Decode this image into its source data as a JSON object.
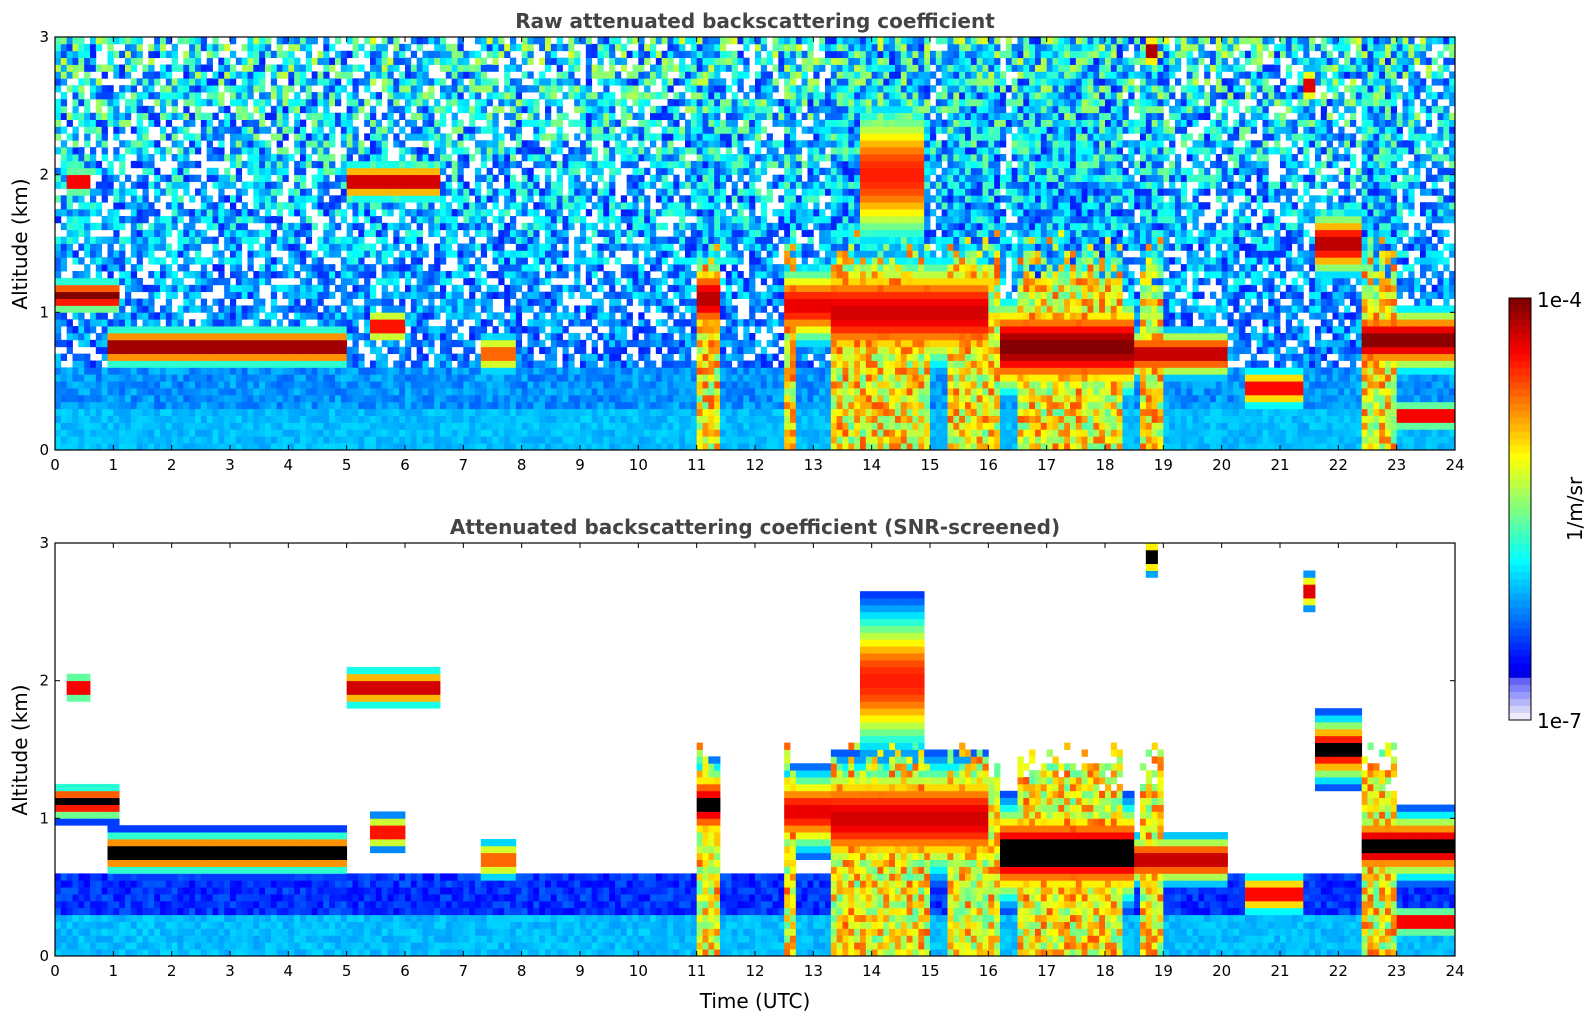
{
  "chart_data": [
    {
      "type": "heatmap",
      "title": "Raw attenuated backscattering coefficient",
      "xlabel": "",
      "ylabel": "Altitude (km)",
      "xlim": [
        0,
        24
      ],
      "ylim": [
        0,
        3
      ],
      "xticks": [
        "0",
        "1",
        "2",
        "3",
        "4",
        "5",
        "6",
        "7",
        "8",
        "9",
        "10",
        "11",
        "12",
        "13",
        "14",
        "15",
        "16",
        "17",
        "18",
        "19",
        "20",
        "21",
        "22",
        "23",
        "24"
      ],
      "yticks": [
        "0",
        "1",
        "2",
        "3"
      ],
      "screened": false,
      "features": [
        {
          "t0": 0.0,
          "t1": 1.1,
          "z": 1.12,
          "dz": 0.1,
          "v": 1.0
        },
        {
          "t0": 0.2,
          "t1": 0.6,
          "z": 1.95,
          "dz": 0.08,
          "v": 0.95
        },
        {
          "t0": 0.9,
          "t1": 5.0,
          "z": 0.75,
          "dz": 0.12,
          "v": 1.0
        },
        {
          "t0": 5.0,
          "t1": 6.6,
          "z": 1.95,
          "dz": 0.12,
          "v": 0.95
        },
        {
          "t0": 5.4,
          "t1": 6.0,
          "z": 0.9,
          "dz": 0.1,
          "v": 0.9
        },
        {
          "t0": 7.3,
          "t1": 7.9,
          "z": 0.7,
          "dz": 0.12,
          "v": 0.8
        },
        {
          "t0": 11.0,
          "t1": 11.4,
          "z": 1.1,
          "dz": 0.25,
          "v": 0.95
        },
        {
          "t0": 12.5,
          "t1": 13.3,
          "z": 1.05,
          "dz": 0.25,
          "v": 0.9
        },
        {
          "t0": 13.3,
          "t1": 16.0,
          "z": 1.0,
          "dz": 0.35,
          "v": 0.92
        },
        {
          "t0": 13.8,
          "t1": 14.9,
          "z": 2.0,
          "dz": 0.45,
          "v": 0.85
        },
        {
          "t0": 16.2,
          "t1": 18.5,
          "z": 0.75,
          "dz": 0.3,
          "v": 1.0
        },
        {
          "t0": 18.5,
          "t1": 20.1,
          "z": 0.7,
          "dz": 0.15,
          "v": 0.95
        },
        {
          "t0": 18.7,
          "t1": 18.9,
          "z": 2.9,
          "dz": 0.1,
          "v": 1.0
        },
        {
          "t0": 20.4,
          "t1": 21.4,
          "z": 0.45,
          "dz": 0.12,
          "v": 0.9
        },
        {
          "t0": 21.4,
          "t1": 21.6,
          "z": 2.65,
          "dz": 0.1,
          "v": 0.95
        },
        {
          "t0": 21.6,
          "t1": 22.4,
          "z": 1.5,
          "dz": 0.2,
          "v": 0.95
        },
        {
          "t0": 22.4,
          "t1": 24.0,
          "z": 0.8,
          "dz": 0.2,
          "v": 1.0
        },
        {
          "t0": 23.0,
          "t1": 24.0,
          "z": 0.25,
          "dz": 0.08,
          "v": 0.95
        }
      ],
      "precip_columns": [
        [
          11.0,
          11.4
        ],
        [
          12.55,
          12.7
        ],
        [
          13.3,
          15.0
        ],
        [
          15.3,
          16.2
        ],
        [
          16.5,
          18.3
        ],
        [
          18.6,
          19.0
        ],
        [
          22.4,
          23.0
        ]
      ]
    },
    {
      "type": "heatmap",
      "title": "Attenuated backscattering coefficient (SNR-screened)",
      "xlabel": "Time (UTC)",
      "ylabel": "Altitude (km)",
      "xlim": [
        0,
        24
      ],
      "ylim": [
        0,
        3
      ],
      "xticks": [
        "0",
        "1",
        "2",
        "3",
        "4",
        "5",
        "6",
        "7",
        "8",
        "9",
        "10",
        "11",
        "12",
        "13",
        "14",
        "15",
        "16",
        "17",
        "18",
        "19",
        "20",
        "21",
        "22",
        "23",
        "24"
      ],
      "yticks": [
        "0",
        "1",
        "2",
        "3"
      ],
      "screened": true,
      "features": [
        {
          "t0": 0.0,
          "t1": 1.1,
          "z": 1.12,
          "dz": 0.1,
          "v": 1.0
        },
        {
          "t0": 0.2,
          "t1": 0.6,
          "z": 1.95,
          "dz": 0.08,
          "v": 0.95
        },
        {
          "t0": 0.9,
          "t1": 5.0,
          "z": 0.75,
          "dz": 0.12,
          "v": 1.0
        },
        {
          "t0": 5.0,
          "t1": 6.6,
          "z": 1.95,
          "dz": 0.12,
          "v": 0.95
        },
        {
          "t0": 5.4,
          "t1": 6.0,
          "z": 0.9,
          "dz": 0.1,
          "v": 0.9
        },
        {
          "t0": 7.3,
          "t1": 7.9,
          "z": 0.7,
          "dz": 0.12,
          "v": 0.8
        },
        {
          "t0": 11.0,
          "t1": 11.4,
          "z": 1.1,
          "dz": 0.25,
          "v": 0.95
        },
        {
          "t0": 12.5,
          "t1": 13.3,
          "z": 1.05,
          "dz": 0.25,
          "v": 0.9
        },
        {
          "t0": 13.3,
          "t1": 16.0,
          "z": 1.0,
          "dz": 0.35,
          "v": 0.92
        },
        {
          "t0": 13.8,
          "t1": 14.9,
          "z": 2.0,
          "dz": 0.45,
          "v": 0.85
        },
        {
          "t0": 16.2,
          "t1": 18.5,
          "z": 0.75,
          "dz": 0.3,
          "v": 1.0
        },
        {
          "t0": 18.5,
          "t1": 20.1,
          "z": 0.7,
          "dz": 0.15,
          "v": 0.95
        },
        {
          "t0": 18.7,
          "t1": 18.9,
          "z": 2.9,
          "dz": 0.1,
          "v": 1.0
        },
        {
          "t0": 20.4,
          "t1": 21.4,
          "z": 0.45,
          "dz": 0.12,
          "v": 0.9
        },
        {
          "t0": 21.4,
          "t1": 21.6,
          "z": 2.65,
          "dz": 0.1,
          "v": 0.95
        },
        {
          "t0": 21.6,
          "t1": 22.4,
          "z": 1.5,
          "dz": 0.2,
          "v": 0.95
        },
        {
          "t0": 22.4,
          "t1": 24.0,
          "z": 0.8,
          "dz": 0.2,
          "v": 1.0
        },
        {
          "t0": 23.0,
          "t1": 24.0,
          "z": 0.25,
          "dz": 0.08,
          "v": 0.95
        }
      ],
      "precip_columns": [
        [
          11.0,
          11.4
        ],
        [
          12.55,
          12.7
        ],
        [
          13.3,
          15.0
        ],
        [
          15.3,
          16.2
        ],
        [
          16.5,
          18.3
        ],
        [
          18.6,
          19.0
        ],
        [
          22.4,
          23.0
        ]
      ]
    }
  ],
  "colorbar": {
    "label": "1/m/sr",
    "max_label": "1e-4",
    "min_label": "1e-7",
    "colormap": "jet",
    "scale": "log",
    "range": [
      1e-07,
      0.0001
    ]
  }
}
